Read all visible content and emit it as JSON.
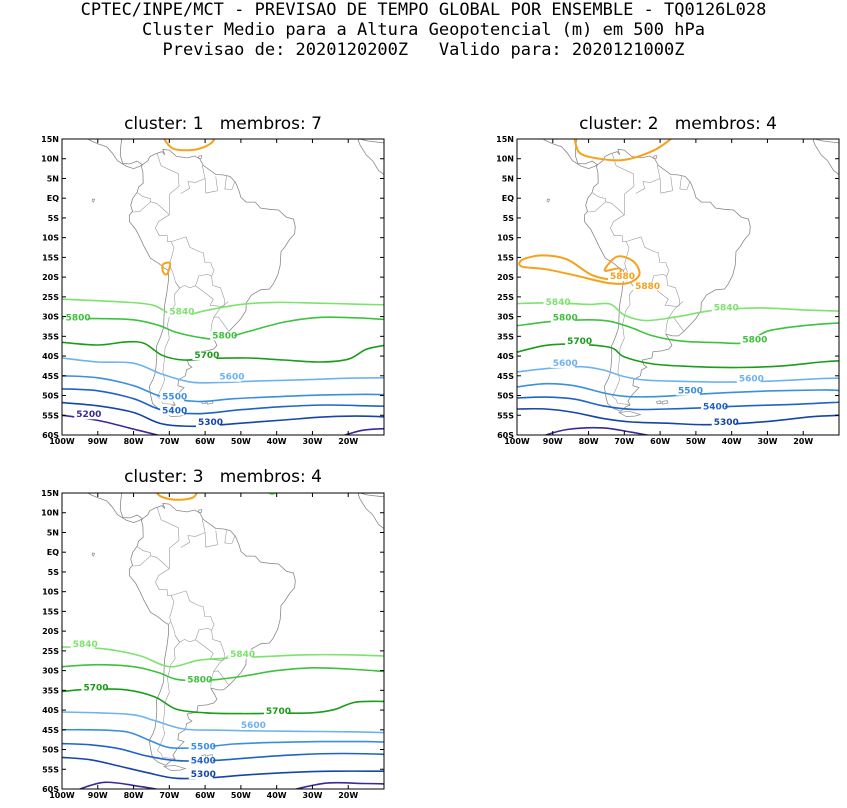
{
  "header": {
    "line1": "CPTEC/INPE/MCT - PREVISAO DE TEMPO GLOBAL POR ENSEMBLE - TQ0126L028",
    "line2": "Cluster Medio para a Altura Geopotencial (m) em 500 hPa",
    "line3": "Previsao de: 2020120200Z   Valido para: 2020121000Z"
  },
  "y_ticks": [
    "15N",
    "10N",
    "5N",
    "EQ",
    "5S",
    "10S",
    "15S",
    "20S",
    "25S",
    "30S",
    "35S",
    "40S",
    "45S",
    "50S",
    "55S",
    "60S"
  ],
  "x_ticks": [
    "100W",
    "90W",
    "80W",
    "70W",
    "60W",
    "50W",
    "40W",
    "30W",
    "20W"
  ],
  "level_colors": {
    "5880": "#f7a11b",
    "5840": "#7de36e",
    "5800": "#3ec23e",
    "5700": "#1a9d1a",
    "5600": "#6fb3ee",
    "5500": "#3b8fe0",
    "5400": "#1e64c8",
    "5300": "#1545a8",
    "5200": "#3a2a96"
  },
  "panels": [
    {
      "title": "cluster: 1   membros: 7",
      "cluster": 1,
      "membros": 7,
      "labels": [
        {
          "text": "5840",
          "level": "5840",
          "lon": -70,
          "lat": -29.5
        },
        {
          "text": "5800",
          "level": "5800",
          "lon": -99,
          "lat": -31
        },
        {
          "text": "5800",
          "level": "5800",
          "lon": -58,
          "lat": -35.5
        },
        {
          "text": "5700",
          "level": "5700",
          "lon": -63,
          "lat": -40.5
        },
        {
          "text": "5600",
          "level": "5600",
          "lon": -56,
          "lat": -46
        },
        {
          "text": "5500",
          "level": "5500",
          "lon": -72,
          "lat": -51
        },
        {
          "text": "5400",
          "level": "5400",
          "lon": -72,
          "lat": -54.5
        },
        {
          "text": "5300",
          "level": "5300",
          "lon": -62,
          "lat": -57.5
        },
        {
          "text": "5200",
          "level": "5200",
          "lon": -96,
          "lat": -55.5
        }
      ]
    },
    {
      "title": "cluster: 2   membros: 4",
      "cluster": 2,
      "membros": 4,
      "labels": [
        {
          "text": "5880",
          "level": "5880",
          "lon": -74,
          "lat": -20.5
        },
        {
          "text": "5880",
          "level": "5880",
          "lon": -67,
          "lat": -23
        },
        {
          "text": "5840",
          "level": "5840",
          "lon": -92,
          "lat": -27
        },
        {
          "text": "5840",
          "level": "5840",
          "lon": -45,
          "lat": -28.5
        },
        {
          "text": "5800",
          "level": "5800",
          "lon": -90,
          "lat": -31
        },
        {
          "text": "5800",
          "level": "5800",
          "lon": -37,
          "lat": -36.5
        },
        {
          "text": "5700",
          "level": "5700",
          "lon": -86,
          "lat": -37
        },
        {
          "text": "5600",
          "level": "5600",
          "lon": -90,
          "lat": -42.5
        },
        {
          "text": "5600",
          "level": "5600",
          "lon": -38,
          "lat": -46.5
        },
        {
          "text": "5500",
          "level": "5500",
          "lon": -55,
          "lat": -49.5
        },
        {
          "text": "5400",
          "level": "5400",
          "lon": -48,
          "lat": -53.5
        },
        {
          "text": "5300",
          "level": "5300",
          "lon": -45,
          "lat": -57.5
        }
      ]
    },
    {
      "title": "cluster: 3   membros: 4",
      "cluster": 3,
      "membros": 4,
      "labels": [
        {
          "text": "5840",
          "level": "5840",
          "lon": -97,
          "lat": -24
        },
        {
          "text": "5840",
          "level": "5840",
          "lon": -53,
          "lat": -26.5
        },
        {
          "text": "5800",
          "level": "5800",
          "lon": -65,
          "lat": -33
        },
        {
          "text": "5700",
          "level": "5700",
          "lon": -94,
          "lat": -35
        },
        {
          "text": "5700",
          "level": "5700",
          "lon": -43,
          "lat": -41
        },
        {
          "text": "5600",
          "level": "5600",
          "lon": -50,
          "lat": -44.5
        },
        {
          "text": "5500",
          "level": "5500",
          "lon": -64,
          "lat": -50
        },
        {
          "text": "5400",
          "level": "5400",
          "lon": -64,
          "lat": -53.5
        },
        {
          "text": "5300",
          "level": "5300",
          "lon": -64,
          "lat": -57
        }
      ]
    }
  ]
}
